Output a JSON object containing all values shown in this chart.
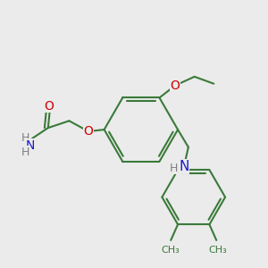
{
  "bg_color": "#ebebeb",
  "bond_color": "#3a7a3a",
  "bond_width": 1.5,
  "atom_colors": {
    "O": "#cc0000",
    "N": "#1a1acc",
    "H": "#808080"
  },
  "font_size": 9
}
